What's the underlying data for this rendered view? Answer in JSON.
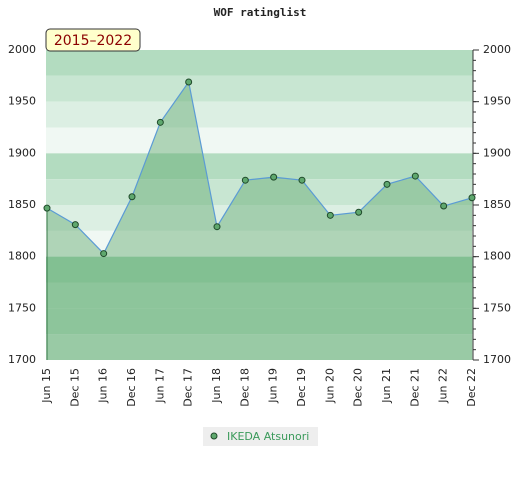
{
  "chart_data": {
    "type": "line",
    "title": "WOF ratinglist",
    "annotation": "2015–2022",
    "categories": [
      "Jun 15",
      "Dec 15",
      "Jun 16",
      "Dec 16",
      "Jun 17",
      "Dec 17",
      "Jun 18",
      "Dec 18",
      "Jun 19",
      "Dec 19",
      "Jun 20",
      "Dec 20",
      "Jun 21",
      "Dec 21",
      "Jun 22",
      "Dec 22"
    ],
    "series": [
      {
        "name": "IKEDA Atsunori",
        "color": "#5fa86e",
        "values": [
          1847,
          1831,
          1803,
          1858,
          1930,
          1969,
          1829,
          1874,
          1877,
          1874,
          1840,
          1843,
          1870,
          1878,
          1849,
          1857
        ]
      }
    ],
    "ylim": [
      1700,
      2000
    ],
    "yticks": [
      1700,
      1750,
      1800,
      1850,
      1900,
      1950,
      2000
    ],
    "bands": [
      "#b3dcc0",
      "#c8e6d2",
      "#dcefe3",
      "#f0f8f3",
      "#b3dcc0",
      "#c8e6d2",
      "#dcefe3",
      "#f0f8f3",
      "#9fd3b0",
      "#b3dcc0",
      "#b3dcc0",
      "#c8e6d2"
    ]
  }
}
